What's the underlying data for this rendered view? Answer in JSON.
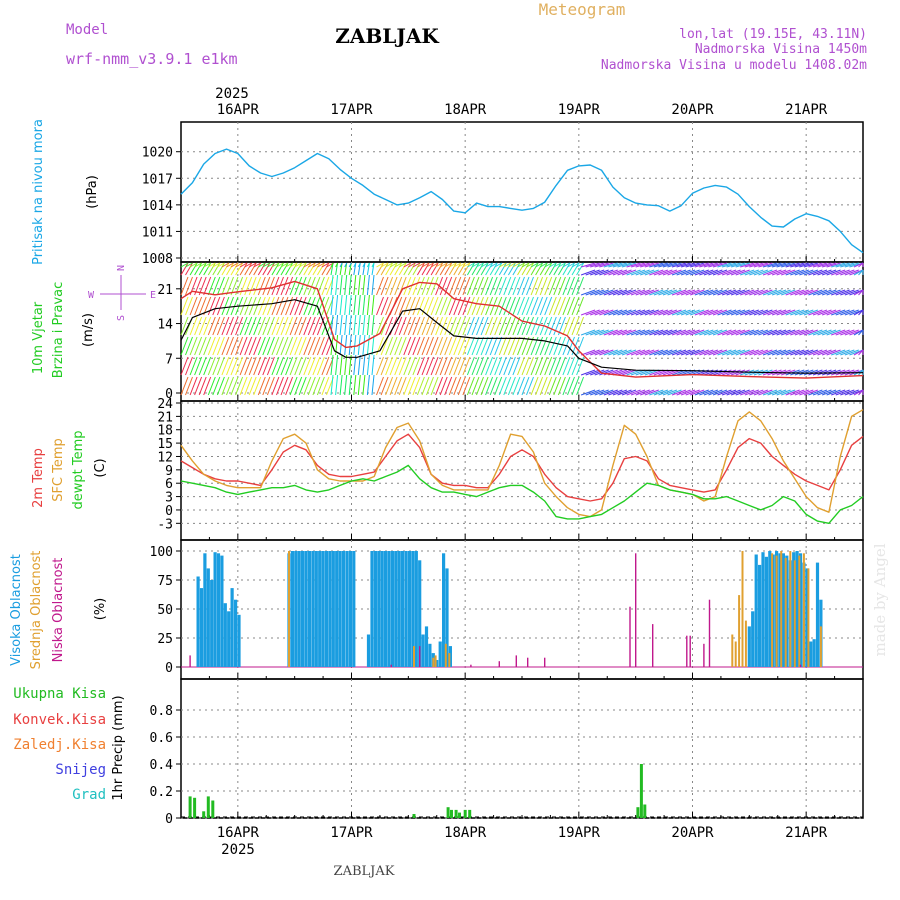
{
  "header": {
    "model_label": "Model",
    "model_name": "wrf-nmm_v3.9.1 e1km",
    "station": "ZABLJAK",
    "product": "Meteogram",
    "coords": "lon,lat (19.15E, 43.11N)",
    "elevation": "Nadmorska Visina 1450m",
    "model_elevation": "Nadmorska Visina u modelu 1408.02m"
  },
  "footer": {
    "station": "ZABLJAK",
    "watermark": "made by Angel"
  },
  "colors": {
    "pressure": "#1aa7e6",
    "wind_speed": "#000000",
    "wind_gust": "#e03030",
    "temp_2m": "#e84040",
    "temp_sfc": "#e0a030",
    "dewpt": "#22cc22",
    "cloud_high": "#1a9de0",
    "cloud_mid": "#e0a030",
    "cloud_low": "#c0188c",
    "precip_total": "#22bb22",
    "precip_conv": "#e84040",
    "precip_strat": "#f08030",
    "precip_snow": "#4040e0",
    "precip_grad": "#20c0c0"
  },
  "chart_data": [
    {
      "type": "line",
      "title": "",
      "ylabel_main": "Pritisak na nivou mora",
      "unit": "(hPa)",
      "year": "2025",
      "day_labels": [
        "16APR",
        "17APR",
        "18APR",
        "19APR",
        "20APR",
        "21APR"
      ],
      "x_range": [
        15.5,
        21.5
      ],
      "ylim": [
        1008,
        1022
      ],
      "yticks": [
        "1008",
        "1011",
        "1014",
        "1017",
        "1020"
      ],
      "grid": true,
      "x": [
        15.5,
        15.6,
        15.7,
        15.8,
        15.9,
        16.0,
        16.1,
        16.2,
        16.3,
        16.4,
        16.5,
        16.6,
        16.7,
        16.8,
        16.9,
        17.0,
        17.1,
        17.2,
        17.3,
        17.4,
        17.5,
        17.6,
        17.7,
        17.8,
        17.9,
        18.0,
        18.1,
        18.2,
        18.3,
        18.4,
        18.5,
        18.6,
        18.7,
        18.8,
        18.9,
        19.0,
        19.1,
        19.2,
        19.3,
        19.4,
        19.5,
        19.6,
        19.7,
        19.8,
        19.9,
        20.0,
        20.1,
        20.2,
        20.3,
        20.4,
        20.5,
        20.6,
        20.7,
        20.8,
        20.9,
        21.0,
        21.1,
        21.2,
        21.3,
        21.4,
        21.5
      ],
      "series": [
        {
          "values": [
            1015.2,
            1016.5,
            1018.6,
            1019.8,
            1020.3,
            1019.8,
            1018.4,
            1017.6,
            1017.2,
            1017.6,
            1018.2,
            1019.0,
            1019.8,
            1019.2,
            1018.0,
            1017.0,
            1016.2,
            1015.2,
            1014.6,
            1014.0,
            1014.2,
            1014.8,
            1015.5,
            1014.6,
            1013.3,
            1013.1,
            1014.2,
            1013.8,
            1013.8,
            1013.6,
            1013.4,
            1013.6,
            1014.3,
            1016.2,
            1017.9,
            1018.4,
            1018.5,
            1017.9,
            1016.0,
            1014.8,
            1014.2,
            1014.0,
            1013.9,
            1013.3,
            1013.9,
            1015.3,
            1015.9,
            1016.2,
            1016.0,
            1015.2,
            1013.8,
            1012.6,
            1011.6,
            1011.5,
            1012.4,
            1013.0,
            1012.7,
            1012.2,
            1011.0,
            1009.5,
            1008.6
          ]
        }
      ]
    },
    {
      "type": "line",
      "title": "",
      "ylabel_main": "10m Vjetar",
      "ylabel_sub": "Brzina i Pravac",
      "unit": "(m/s)",
      "compass_labels": {
        "n": "N",
        "s": "S",
        "w": "W",
        "e": "E"
      },
      "ylim": [
        0,
        26
      ],
      "yticks": [
        "0",
        "7",
        "14",
        "21"
      ],
      "grid": true,
      "series": [
        {
          "name": "speed",
          "x": [
            15.5,
            15.6,
            15.8,
            16.0,
            16.3,
            16.5,
            16.7,
            16.85,
            16.95,
            17.05,
            17.25,
            17.45,
            17.6,
            17.75,
            17.9,
            18.1,
            18.3,
            18.5,
            18.7,
            18.9,
            19.0,
            19.2,
            19.5,
            20.0,
            20.5,
            21.0,
            21.5
          ],
          "values": [
            10.6,
            15.2,
            17.0,
            17.5,
            18.0,
            18.8,
            17.5,
            8.5,
            7.2,
            7.2,
            8.5,
            16.5,
            17.0,
            14.2,
            11.5,
            11.0,
            11.0,
            11.0,
            10.5,
            9.5,
            7.0,
            5.2,
            4.6,
            4.5,
            4.2,
            4.0,
            4.1
          ]
        },
        {
          "name": "gust",
          "x": [
            15.5,
            15.6,
            15.8,
            16.0,
            16.3,
            16.5,
            16.7,
            16.85,
            16.95,
            17.05,
            17.25,
            17.45,
            17.6,
            17.75,
            17.9,
            18.1,
            18.3,
            18.5,
            18.7,
            18.9,
            19.0,
            19.2,
            19.5,
            20.0,
            20.5,
            21.0,
            21.5
          ],
          "values": [
            19.0,
            20.5,
            19.8,
            20.4,
            21.2,
            22.5,
            21.0,
            10.8,
            9.2,
            9.5,
            12.0,
            21.0,
            22.3,
            22.0,
            19.0,
            18.0,
            17.5,
            14.5,
            13.5,
            11.5,
            8.5,
            4.0,
            3.2,
            3.7,
            3.3,
            3.0,
            3.5
          ]
        }
      ]
    },
    {
      "type": "line",
      "title": "",
      "ylabel_lines": [
        "2m Temp",
        "SFC Temp",
        "dewpt Temp"
      ],
      "unit": "(C)",
      "ylim": [
        -4.5,
        24
      ],
      "yticks": [
        "-3",
        "0",
        "3",
        "6",
        "9",
        "12",
        "15",
        "18",
        "21",
        "24"
      ],
      "grid": true,
      "series": [
        {
          "name": "2m Temp",
          "x": [
            15.5,
            15.6,
            15.7,
            15.8,
            15.9,
            16.0,
            16.1,
            16.2,
            16.3,
            16.4,
            16.5,
            16.6,
            16.7,
            16.8,
            16.9,
            17.0,
            17.1,
            17.2,
            17.3,
            17.4,
            17.5,
            17.6,
            17.7,
            17.8,
            17.9,
            18.0,
            18.1,
            18.2,
            18.3,
            18.4,
            18.5,
            18.6,
            18.7,
            18.8,
            18.9,
            19.0,
            19.1,
            19.2,
            19.3,
            19.4,
            19.5,
            19.6,
            19.7,
            19.8,
            19.9,
            20.0,
            20.1,
            20.2,
            20.3,
            20.4,
            20.5,
            20.6,
            20.7,
            20.8,
            20.9,
            21.0,
            21.1,
            21.2,
            21.3,
            21.4,
            21.5
          ],
          "values": [
            11,
            9.5,
            8,
            7,
            6.5,
            6.5,
            6,
            5.5,
            9,
            13,
            14.5,
            13.5,
            10,
            8,
            7.5,
            7.5,
            8,
            8.5,
            12,
            15.5,
            17,
            14,
            8,
            6,
            5.5,
            5.5,
            5,
            5,
            8,
            12,
            13.5,
            12,
            8,
            5,
            3,
            2.5,
            2,
            2.5,
            6,
            11.5,
            12,
            11,
            7,
            5.5,
            5,
            4.5,
            4,
            4.5,
            9,
            14,
            16,
            15,
            12,
            10,
            8,
            6.5,
            5.5,
            4.5,
            9,
            14.5,
            16.5
          ]
        },
        {
          "name": "SFC Temp",
          "x": [
            15.5,
            15.6,
            15.7,
            15.8,
            15.9,
            16.0,
            16.1,
            16.2,
            16.3,
            16.4,
            16.5,
            16.6,
            16.7,
            16.8,
            16.9,
            17.0,
            17.1,
            17.2,
            17.3,
            17.4,
            17.5,
            17.6,
            17.7,
            17.8,
            17.9,
            18.0,
            18.1,
            18.2,
            18.3,
            18.4,
            18.5,
            18.6,
            18.7,
            18.8,
            18.9,
            19.0,
            19.1,
            19.2,
            19.3,
            19.4,
            19.5,
            19.6,
            19.7,
            19.8,
            19.9,
            20.0,
            20.1,
            20.2,
            20.3,
            20.4,
            20.5,
            20.6,
            20.7,
            20.8,
            20.9,
            21.0,
            21.1,
            21.2,
            21.3,
            21.4,
            21.5
          ],
          "values": [
            14.5,
            11,
            8,
            6.5,
            5.5,
            5,
            5,
            5,
            11,
            16,
            17,
            15,
            9,
            7,
            6.5,
            6.5,
            6.5,
            7.5,
            14,
            18.5,
            19.5,
            15.5,
            8,
            5.5,
            4.5,
            4.5,
            4.5,
            4.5,
            10,
            17,
            16.5,
            13,
            6,
            3,
            0.5,
            -1,
            -1.5,
            0,
            10,
            19,
            17,
            12,
            5.5,
            4.5,
            4,
            3.5,
            2,
            3,
            12,
            20,
            22,
            20,
            16,
            11,
            7,
            3,
            0.5,
            -0.5,
            12,
            21,
            22.5
          ]
        },
        {
          "name": "dewpt Temp",
          "x": [
            15.5,
            15.6,
            15.7,
            15.8,
            15.9,
            16.0,
            16.1,
            16.2,
            16.3,
            16.4,
            16.5,
            16.6,
            16.7,
            16.8,
            16.9,
            17.0,
            17.1,
            17.2,
            17.3,
            17.4,
            17.5,
            17.6,
            17.7,
            17.8,
            17.9,
            18.0,
            18.1,
            18.2,
            18.3,
            18.4,
            18.5,
            18.6,
            18.7,
            18.8,
            18.9,
            19.0,
            19.1,
            19.2,
            19.3,
            19.4,
            19.5,
            19.6,
            19.7,
            19.8,
            19.9,
            20.0,
            20.1,
            20.2,
            20.3,
            20.4,
            20.5,
            20.6,
            20.7,
            20.8,
            20.9,
            21.0,
            21.1,
            21.2,
            21.3,
            21.4,
            21.5
          ],
          "values": [
            6.5,
            6,
            5.5,
            5,
            4,
            3.5,
            4,
            4.5,
            5,
            5,
            5.5,
            4.5,
            4,
            4.5,
            5.5,
            6.5,
            7,
            6.5,
            7.5,
            8.5,
            10,
            7,
            5,
            4,
            4,
            3.5,
            3,
            4,
            5,
            5.5,
            5.5,
            4,
            2,
            -1.5,
            -2,
            -2,
            -1.5,
            -1,
            0.5,
            2,
            4,
            6,
            5.5,
            4.5,
            4,
            3.5,
            2.5,
            2.5,
            3,
            2,
            1,
            0,
            1,
            3,
            2,
            -1,
            -2.5,
            -3,
            0,
            1,
            3
          ]
        }
      ]
    },
    {
      "type": "bar",
      "title": "",
      "ylabel_lines": [
        "Visoka Oblacnost",
        "Srednja Oblacnost",
        "Niska Oblacnost"
      ],
      "unit": "(%)",
      "ylim": [
        0,
        100
      ],
      "yticks": [
        "0",
        "25",
        "50",
        "75",
        "100"
      ],
      "grid": true,
      "series": [
        {
          "name": "Visoka Oblacnost",
          "x": [
            15.65,
            15.68,
            15.71,
            15.74,
            15.77,
            15.8,
            15.83,
            15.86,
            15.89,
            15.92,
            15.95,
            15.98,
            16.01,
            16.45,
            16.48,
            16.51,
            16.54,
            16.57,
            16.6,
            16.63,
            16.66,
            16.69,
            16.72,
            16.75,
            16.78,
            16.81,
            16.84,
            16.87,
            16.9,
            16.93,
            16.96,
            16.99,
            17.02,
            17.05,
            17.15,
            17.18,
            17.21,
            17.24,
            17.27,
            17.3,
            17.33,
            17.36,
            17.39,
            17.42,
            17.45,
            17.48,
            17.51,
            17.54,
            17.57,
            17.6,
            17.63,
            17.66,
            17.69,
            17.72,
            17.75,
            17.78,
            17.81,
            17.84,
            17.87,
            20.5,
            20.53,
            20.56,
            20.59,
            20.62,
            20.65,
            20.68,
            20.71,
            20.74,
            20.77,
            20.8,
            20.83,
            20.86,
            20.89,
            20.92,
            20.95,
            20.98,
            21.01,
            21.04,
            21.07,
            21.1,
            21.13
          ],
          "values": [
            78,
            68,
            98,
            85,
            75,
            99,
            98,
            96,
            55,
            48,
            68,
            58,
            45,
            98,
            100,
            100,
            100,
            100,
            100,
            100,
            100,
            100,
            100,
            100,
            100,
            100,
            100,
            100,
            100,
            100,
            100,
            100,
            100,
            0,
            28,
            100,
            100,
            100,
            100,
            100,
            100,
            100,
            100,
            100,
            100,
            100,
            100,
            100,
            100,
            92,
            28,
            35,
            20,
            12,
            6,
            22,
            98,
            85,
            18,
            35,
            48,
            97,
            88,
            99,
            95,
            100,
            97,
            100,
            98,
            98,
            96,
            92,
            99,
            100,
            98,
            90,
            85,
            22,
            24,
            90,
            58
          ]
        },
        {
          "name": "Srednja Oblacnost",
          "x": [
            16.45,
            17.55,
            17.72,
            17.74,
            17.83,
            17.86,
            20.35,
            20.38,
            20.41,
            20.44,
            20.47,
            20.7,
            20.74,
            20.78,
            20.82,
            20.86,
            20.9,
            20.94,
            20.98,
            21.02,
            21.13
          ],
          "values": [
            100,
            18,
            8,
            10,
            20,
            12,
            28,
            22,
            62,
            100,
            40,
            98,
            96,
            100,
            94,
            100,
            92,
            96,
            98,
            85,
            35
          ]
        },
        {
          "name": "Niska Oblacnost",
          "x": [
            15.58,
            17.35,
            17.6,
            18.05,
            18.3,
            18.45,
            18.55,
            18.7,
            19.45,
            19.5,
            19.65,
            19.95,
            19.98,
            20.1,
            20.15,
            20.95
          ],
          "values": [
            10,
            2,
            18,
            2,
            5,
            10,
            8,
            8,
            52,
            98,
            37,
            27,
            27,
            20,
            58,
            2
          ]
        }
      ]
    },
    {
      "type": "bar",
      "title": "",
      "legend": [
        "Ukupna Kisa",
        "Konvek.Kisa",
        "Zaledj.Kisa",
        "Snijeg",
        "Grad"
      ],
      "ylabel": "1hr Precip (mm)",
      "ylim": [
        0,
        1.0
      ],
      "yticks": [
        "0",
        "0.2",
        "0.4",
        "0.6",
        "0.8"
      ],
      "grid": true,
      "series": [
        {
          "name": "Ukupna Kisa",
          "x": [
            15.58,
            15.62,
            15.7,
            15.74,
            15.78,
            17.55,
            17.85,
            17.88,
            17.92,
            17.95,
            18.0,
            18.04,
            19.52,
            19.55,
            19.58
          ],
          "values": [
            0.16,
            0.15,
            0.05,
            0.16,
            0.13,
            0.03,
            0.08,
            0.06,
            0.06,
            0.04,
            0.06,
            0.06,
            0.08,
            0.4,
            0.1
          ]
        }
      ]
    }
  ]
}
